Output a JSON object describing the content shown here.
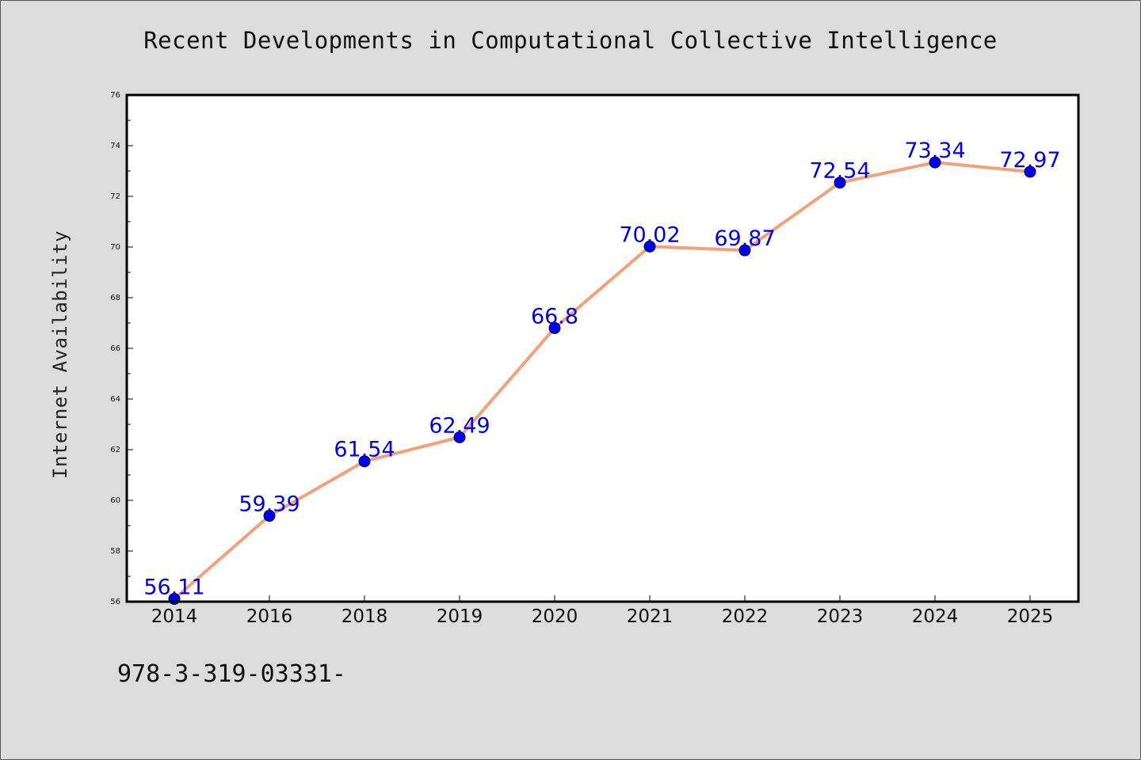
{
  "chart_data": {
    "type": "line",
    "title": "Recent Developments in Computational Collective Intelligence",
    "xlabel": "",
    "ylabel": "Internet Availability",
    "categories": [
      "2014",
      "2016",
      "2018",
      "2019",
      "2020",
      "2021",
      "2022",
      "2023",
      "2024",
      "2025"
    ],
    "series": [
      {
        "values": [
          56.11,
          59.39,
          61.54,
          62.49,
          66.8,
          70.02,
          69.87,
          72.54,
          73.34,
          72.97
        ],
        "data_labels": [
          "56.11",
          "59.39",
          "61.54",
          "62.49",
          "66.8",
          "70.02",
          "69.87",
          "72.54",
          "73.34",
          "72.97"
        ],
        "line_color": "#f4a07a",
        "marker_color": "#0000ee",
        "label_color": "#0000ee"
      }
    ],
    "ylim": [
      56,
      76
    ],
    "yticks": [
      56,
      58,
      60,
      62,
      64,
      66,
      68,
      70,
      72,
      74,
      76
    ],
    "grid": false,
    "legend": "none"
  },
  "footer_note": "978-3-319-03331-",
  "colors": {
    "background": "#dcdcdc",
    "plot_background": "#ffffff",
    "axis": "#000000"
  }
}
